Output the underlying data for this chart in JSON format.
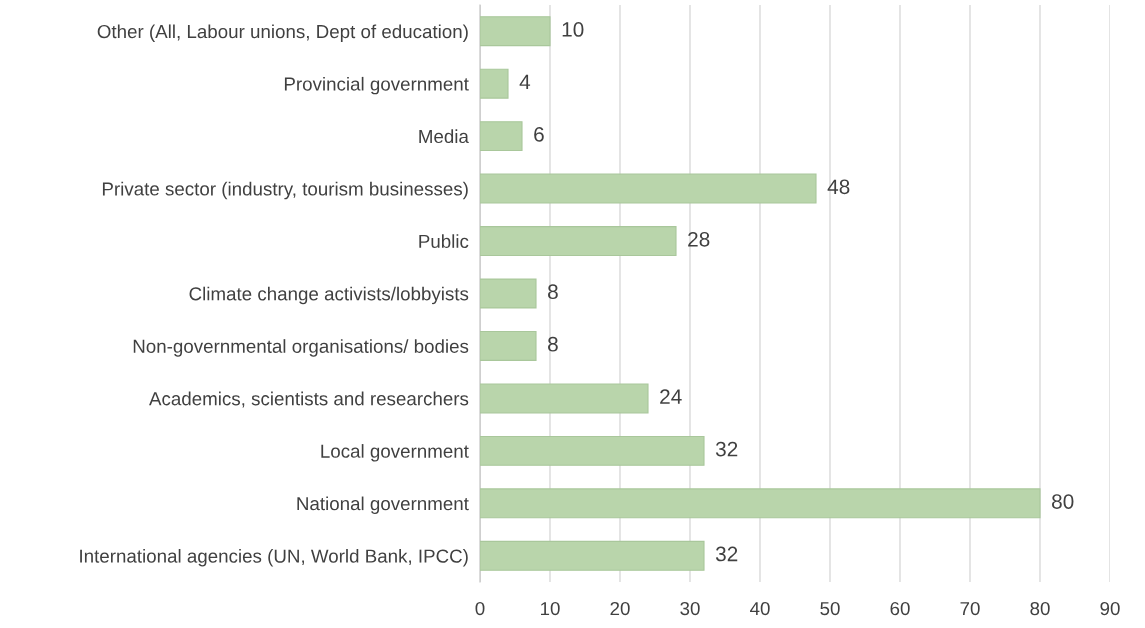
{
  "chart_data": {
    "type": "bar",
    "orientation": "horizontal",
    "categories": [
      "Other (All, Labour unions, Dept of education)",
      "Provincial government",
      "Media",
      "Private sector (industry, tourism businesses)",
      "Public",
      "Climate change activists/lobbyists",
      "Non-governmental organisations/ bodies",
      "Academics, scientists and researchers",
      "Local government",
      "National government",
      "International agencies (UN, World Bank, IPCC)"
    ],
    "values": [
      10,
      4,
      6,
      48,
      28,
      8,
      8,
      24,
      32,
      80,
      32
    ],
    "color": "#b9d5ab",
    "xlim": [
      0,
      90
    ],
    "xticks": [
      0,
      10,
      20,
      30,
      40,
      50,
      60,
      70,
      80,
      90
    ],
    "grid": "x",
    "data_labels": true
  }
}
